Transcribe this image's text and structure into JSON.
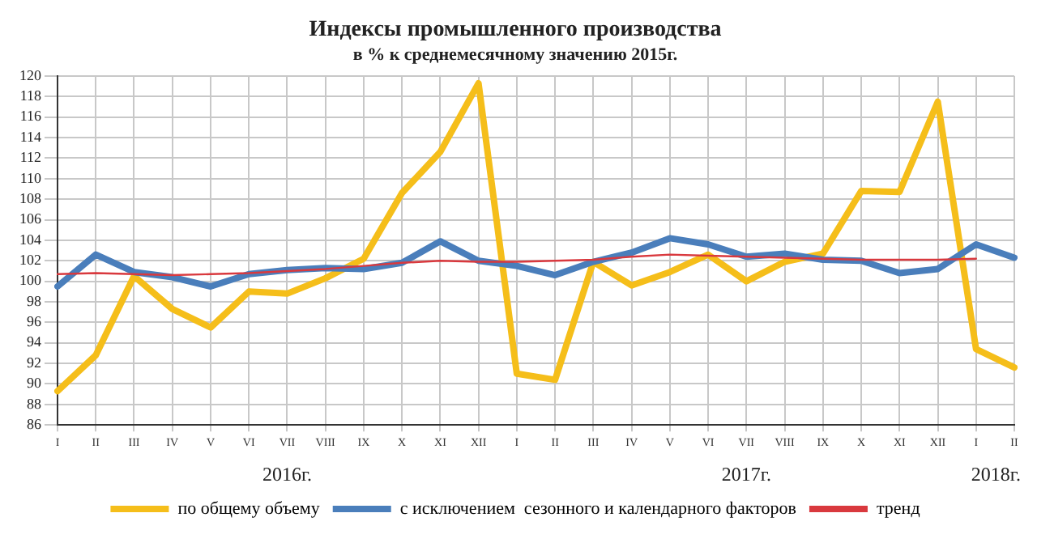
{
  "chart_data": {
    "type": "line",
    "title": "Индексы промышленного производства",
    "subtitle": "в % к среднемесячному значению 2015г.",
    "categories": [
      "I",
      "II",
      "III",
      "IV",
      "V",
      "VI",
      "VII",
      "VIII",
      "IX",
      "X",
      "XI",
      "XII",
      "I",
      "II",
      "III",
      "IV",
      "V",
      "VI",
      "VII",
      "VIII",
      "IX",
      "X",
      "XI",
      "XII",
      "I",
      "II"
    ],
    "series": [
      {
        "name": "по общему объему",
        "color": "#f5be1a",
        "values": [
          89.3,
          92.8,
          100.5,
          97.3,
          95.5,
          99,
          98.8,
          100.3,
          102.2,
          108.6,
          112.6,
          119.3,
          91,
          90.4,
          101.9,
          99.6,
          100.9,
          102.6,
          100,
          101.9,
          102.7,
          108.8,
          108.7,
          117.5,
          93.4,
          91.6
        ]
      },
      {
        "name": "с исключением  сезонного и календарного факторов",
        "color": "#4a7ebb",
        "values": [
          99.5,
          102.6,
          100.9,
          100.4,
          99.5,
          100.7,
          101.1,
          101.3,
          101.2,
          101.8,
          103.9,
          102,
          101.5,
          100.6,
          101.9,
          102.8,
          104.2,
          103.6,
          102.4,
          102.7,
          102.1,
          102,
          100.8,
          101.2,
          103.6,
          102.3
        ]
      },
      {
        "name": "тренд",
        "color": "#d9393e",
        "values": [
          100.7,
          100.8,
          100.7,
          100.6,
          100.7,
          100.8,
          101,
          101.2,
          101.5,
          101.8,
          102,
          101.9,
          101.9,
          102,
          102.1,
          102.4,
          102.6,
          102.5,
          102.4,
          102.3,
          102.2,
          102.1,
          102.1,
          102.1,
          102.2,
          null
        ]
      }
    ],
    "ylim": [
      86,
      120
    ],
    "yticks": [
      86,
      88,
      90,
      92,
      94,
      96,
      98,
      100,
      102,
      104,
      106,
      108,
      110,
      112,
      114,
      116,
      118,
      120
    ],
    "grid": true,
    "legend": "bottom",
    "marker": "none",
    "line_style": "solid",
    "annotations": [
      "2016г.",
      "2017г.",
      "2018г."
    ]
  }
}
